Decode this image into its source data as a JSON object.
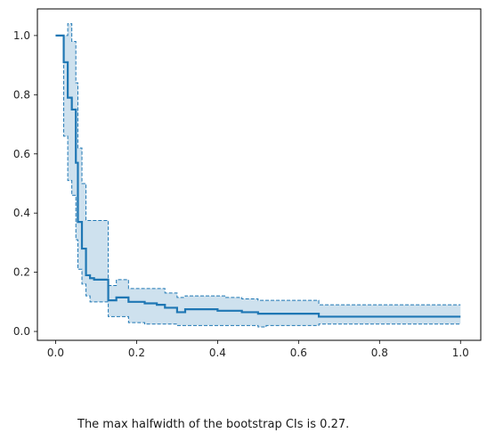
{
  "chart_data": {
    "type": "line",
    "title": "",
    "xlabel": "",
    "ylabel": "",
    "xlim": [
      -0.045,
      1.05
    ],
    "ylim": [
      -0.03,
      1.09
    ],
    "x_ticks": [
      0.0,
      0.2,
      0.4,
      0.6,
      0.8,
      1.0
    ],
    "x_tick_labels": [
      "0.0",
      "0.2",
      "0.4",
      "0.6",
      "0.8",
      "1.0"
    ],
    "y_ticks": [
      0.0,
      0.2,
      0.4,
      0.6,
      0.8,
      1.0
    ],
    "y_tick_labels": [
      "0.0",
      "0.2",
      "0.4",
      "0.6",
      "0.8",
      "1.0"
    ],
    "grid": false,
    "line_color": "#1f77b4",
    "band_fill_color": "#aecde3",
    "series": [
      {
        "style": "step-post-solid",
        "x": [
          0.0,
          0.02,
          0.03,
          0.04,
          0.05,
          0.055,
          0.065,
          0.075,
          0.085,
          0.095,
          0.13,
          0.15,
          0.18,
          0.22,
          0.25,
          0.27,
          0.3,
          0.32,
          0.36,
          0.4,
          0.42,
          0.46,
          0.5,
          0.52,
          0.56,
          0.6,
          0.65,
          1.0
        ],
        "y": [
          1.0,
          0.91,
          0.79,
          0.75,
          0.57,
          0.37,
          0.28,
          0.19,
          0.18,
          0.175,
          0.105,
          0.115,
          0.1,
          0.095,
          0.09,
          0.08,
          0.065,
          0.075,
          0.075,
          0.07,
          0.07,
          0.065,
          0.06,
          0.06,
          0.06,
          0.06,
          0.05,
          0.05
        ]
      },
      {
        "style": "step-post-dashed",
        "x": [
          0.0,
          0.02,
          0.03,
          0.04,
          0.05,
          0.055,
          0.065,
          0.075,
          0.085,
          0.095,
          0.13,
          0.15,
          0.18,
          0.22,
          0.25,
          0.27,
          0.3,
          0.32,
          0.36,
          0.4,
          0.42,
          0.46,
          0.5,
          0.52,
          0.56,
          0.6,
          0.65,
          1.0
        ],
        "y": [
          1.0,
          1.0,
          1.04,
          0.98,
          0.84,
          0.62,
          0.5,
          0.375,
          0.375,
          0.375,
          0.155,
          0.175,
          0.145,
          0.145,
          0.145,
          0.13,
          0.115,
          0.12,
          0.12,
          0.12,
          0.115,
          0.11,
          0.105,
          0.105,
          0.105,
          0.105,
          0.09,
          0.09
        ]
      },
      {
        "style": "step-post-dashed",
        "x": [
          0.0,
          0.02,
          0.03,
          0.04,
          0.05,
          0.055,
          0.065,
          0.075,
          0.085,
          0.095,
          0.13,
          0.15,
          0.18,
          0.22,
          0.25,
          0.27,
          0.3,
          0.32,
          0.36,
          0.4,
          0.42,
          0.46,
          0.5,
          0.52,
          0.56,
          0.6,
          0.65,
          1.0
        ],
        "y": [
          1.0,
          0.66,
          0.51,
          0.46,
          0.31,
          0.21,
          0.16,
          0.12,
          0.1,
          0.1,
          0.05,
          0.05,
          0.03,
          0.025,
          0.025,
          0.025,
          0.02,
          0.02,
          0.02,
          0.02,
          0.02,
          0.02,
          0.015,
          0.02,
          0.02,
          0.02,
          0.025,
          0.025
        ]
      }
    ]
  },
  "caption": "The max halfwidth of the bootstrap CIs is 0.27."
}
